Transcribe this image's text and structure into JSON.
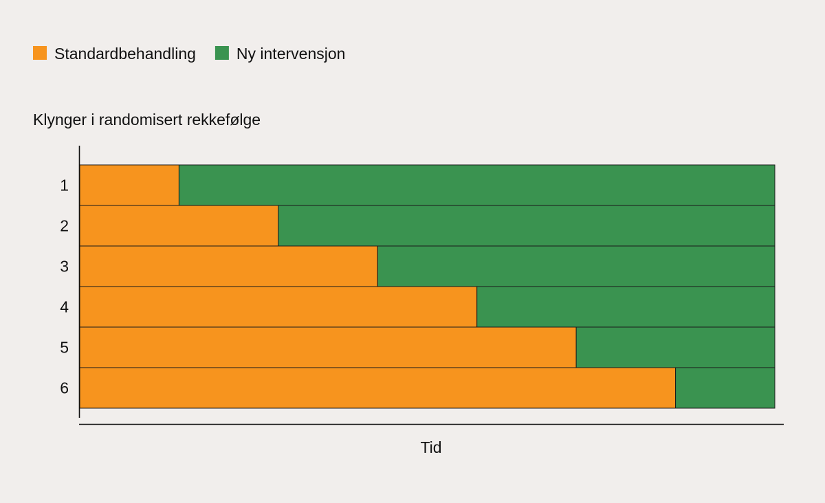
{
  "chart_data": {
    "type": "bar",
    "orientation": "horizontal",
    "stacked": true,
    "title": "",
    "xlabel": "Tid",
    "ylabel": "Klynger i randomisert rekkefølge",
    "categories": [
      "1",
      "2",
      "3",
      "4",
      "5",
      "6"
    ],
    "series": [
      {
        "name": "Standardbehandling",
        "color": "#f7941e",
        "values": [
          1,
          2,
          3,
          4,
          5,
          6
        ]
      },
      {
        "name": "Ny intervensjon",
        "color": "#3a9350",
        "values": [
          6,
          5,
          4,
          3,
          2,
          1
        ]
      }
    ],
    "xlim": [
      0,
      7
    ],
    "grid": false,
    "legend_position": "top-left",
    "axis_ticks_visible": false
  }
}
